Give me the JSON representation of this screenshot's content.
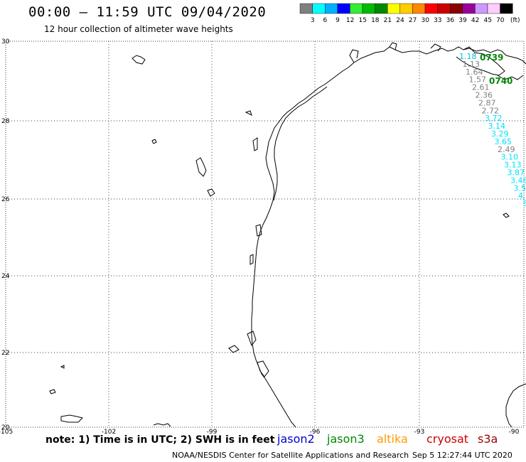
{
  "header": {
    "title": "00:00 – 11:59 UTC 09/04/2020",
    "subtitle": "12 hour collection of altimeter wave heights"
  },
  "legend": {
    "unit": "(ft)",
    "bins": [
      {
        "label": "3",
        "color": "#7f7f7f"
      },
      {
        "label": "6",
        "color": "#00ffff"
      },
      {
        "label": "9",
        "color": "#00b0ff"
      },
      {
        "label": "12",
        "color": "#0000ff"
      },
      {
        "label": "15",
        "color": "#33ee33"
      },
      {
        "label": "18",
        "color": "#00bb00"
      },
      {
        "label": "21",
        "color": "#008800"
      },
      {
        "label": "24",
        "color": "#ffff00"
      },
      {
        "label": "27",
        "color": "#ffcc00"
      },
      {
        "label": "30",
        "color": "#ff8800"
      },
      {
        "label": "33",
        "color": "#ff0000"
      },
      {
        "label": "36",
        "color": "#cc0000"
      },
      {
        "label": "39",
        "color": "#880000"
      },
      {
        "label": "42",
        "color": "#990099"
      },
      {
        "label": "45",
        "color": "#cc99ff"
      },
      {
        "label": "70",
        "color": "#ffccff"
      },
      {
        "label": "",
        "color": "#000000"
      }
    ]
  },
  "axes": {
    "lat_ticks": [
      "30",
      "28",
      "26",
      "24",
      "22",
      "20"
    ],
    "lon_ticks": [
      "-105",
      "-102",
      "-99",
      "-96",
      "-93",
      "-90"
    ]
  },
  "track": {
    "time_labels": [
      {
        "text": "0739",
        "color": "#008800"
      },
      {
        "text": "0740",
        "color": "#008800"
      }
    ],
    "values": [
      {
        "text": "1.18",
        "color": "#00c0d0"
      },
      {
        "text": "1.13",
        "color": "#808080"
      },
      {
        "text": "1.64",
        "color": "#808080"
      },
      {
        "text": "1.57",
        "color": "#808080"
      },
      {
        "text": "2.61",
        "color": "#808080"
      },
      {
        "text": "2.36",
        "color": "#808080"
      },
      {
        "text": "2.87",
        "color": "#808080"
      },
      {
        "text": "2.72",
        "color": "#808080"
      },
      {
        "text": "3.72",
        "color": "#00e0ff"
      },
      {
        "text": "3.14",
        "color": "#00e0ff"
      },
      {
        "text": "3.29",
        "color": "#00e0ff"
      },
      {
        "text": "3.65",
        "color": "#00e0ff"
      },
      {
        "text": "2.49",
        "color": "#808080"
      },
      {
        "text": "3.10",
        "color": "#00e0ff"
      },
      {
        "text": "3.13",
        "color": "#00e0ff"
      },
      {
        "text": "3.87",
        "color": "#00e0ff"
      },
      {
        "text": "3.48",
        "color": "#00e0ff"
      },
      {
        "text": "3.56",
        "color": "#00e0ff"
      },
      {
        "text": "4.4",
        "color": "#00e0ff"
      },
      {
        "text": "5.",
        "color": "#00e0ff"
      },
      {
        "text": "4.",
        "color": "#00e0ff"
      },
      {
        "text": "4",
        "color": "#00e0ff"
      }
    ]
  },
  "footer": {
    "note": "note: 1) Time is in UTC; 2) SWH is in feet",
    "satellites": [
      {
        "name": "jason2",
        "color": "#0000cc"
      },
      {
        "name": "jason3",
        "color": "#008800"
      },
      {
        "name": "altika",
        "color": "#ff9900"
      },
      {
        "name": "cryosat",
        "color": "#cc0000"
      },
      {
        "name": "s3a",
        "color": "#990000"
      }
    ],
    "credit": "NOAA/NESDIS Center for Satellite Applications and Research",
    "timestamp": "Sep  5 12:27:44 UTC 2020"
  }
}
